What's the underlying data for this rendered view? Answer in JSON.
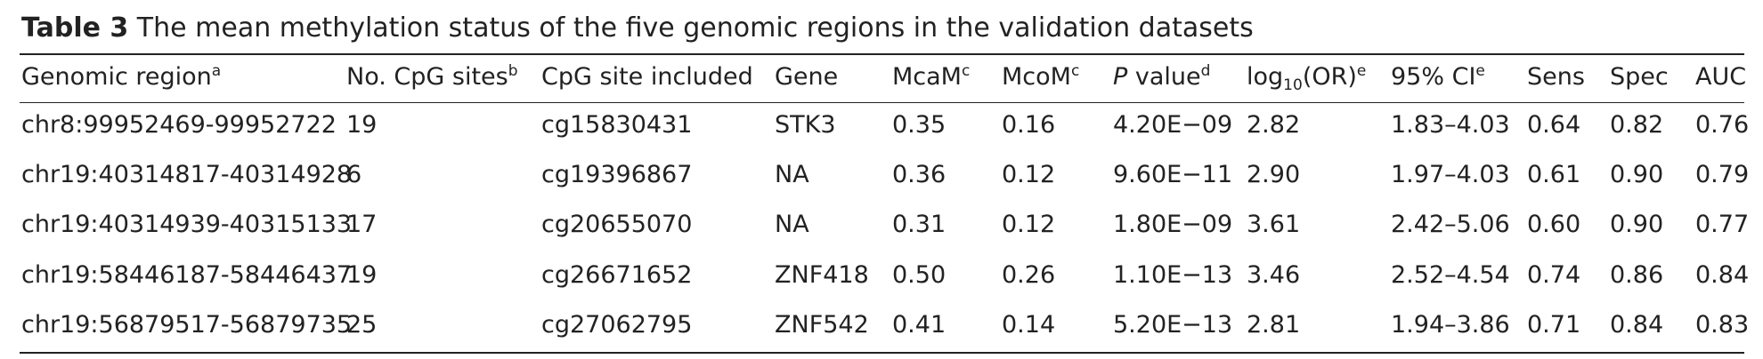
{
  "caption": {
    "label": "Table 3",
    "text": " The mean methylation status of the five genomic regions in the validation datasets"
  },
  "header": {
    "genomic_region": "Genomic region",
    "genomic_region_note": "a",
    "no_cpg_sites": "No. CpG sites",
    "no_cpg_sites_note": "b",
    "cpg_site_included": "CpG site included",
    "gene": "Gene",
    "mcam": "McaM",
    "mcam_note": "c",
    "mcom": "McoM",
    "mcom_note": "c",
    "p_value_italic": "P",
    "p_value_rest": " value",
    "p_value_note": "d",
    "log_prefix": "log",
    "log_base": "10",
    "log_suffix": "(OR)",
    "log_note": "e",
    "ci": "95% CI",
    "ci_note": "e",
    "sens": "Sens",
    "spec": "Spec",
    "auc": "AUC"
  },
  "rows": [
    [
      "chr8:99952469-99952722",
      "19",
      "cg15830431",
      "STK3",
      "0.35",
      "0.16",
      "4.20E−09",
      "2.82",
      "1.83–4.03",
      "0.64",
      "0.82",
      "0.76"
    ],
    [
      "chr19:40314817-40314928",
      "6",
      "cg19396867",
      "NA",
      "0.36",
      "0.12",
      "9.60E−11",
      "2.90",
      "1.97–4.03",
      "0.61",
      "0.90",
      "0.79"
    ],
    [
      "chr19:40314939-40315133",
      "17",
      "cg20655070",
      "NA",
      "0.31",
      "0.12",
      "1.80E−09",
      "3.61",
      "2.42–5.06",
      "0.60",
      "0.90",
      "0.77"
    ],
    [
      "chr19:58446187-58446437",
      "19",
      "cg26671652",
      "ZNF418",
      "0.50",
      "0.26",
      "1.10E−13",
      "3.46",
      "2.52–4.54",
      "0.74",
      "0.86",
      "0.84"
    ],
    [
      "chr19:56879517-56879735",
      "25",
      "cg27062795",
      "ZNF542",
      "0.41",
      "0.14",
      "5.20E−13",
      "2.81",
      "1.94–3.86",
      "0.71",
      "0.84",
      "0.83"
    ]
  ]
}
